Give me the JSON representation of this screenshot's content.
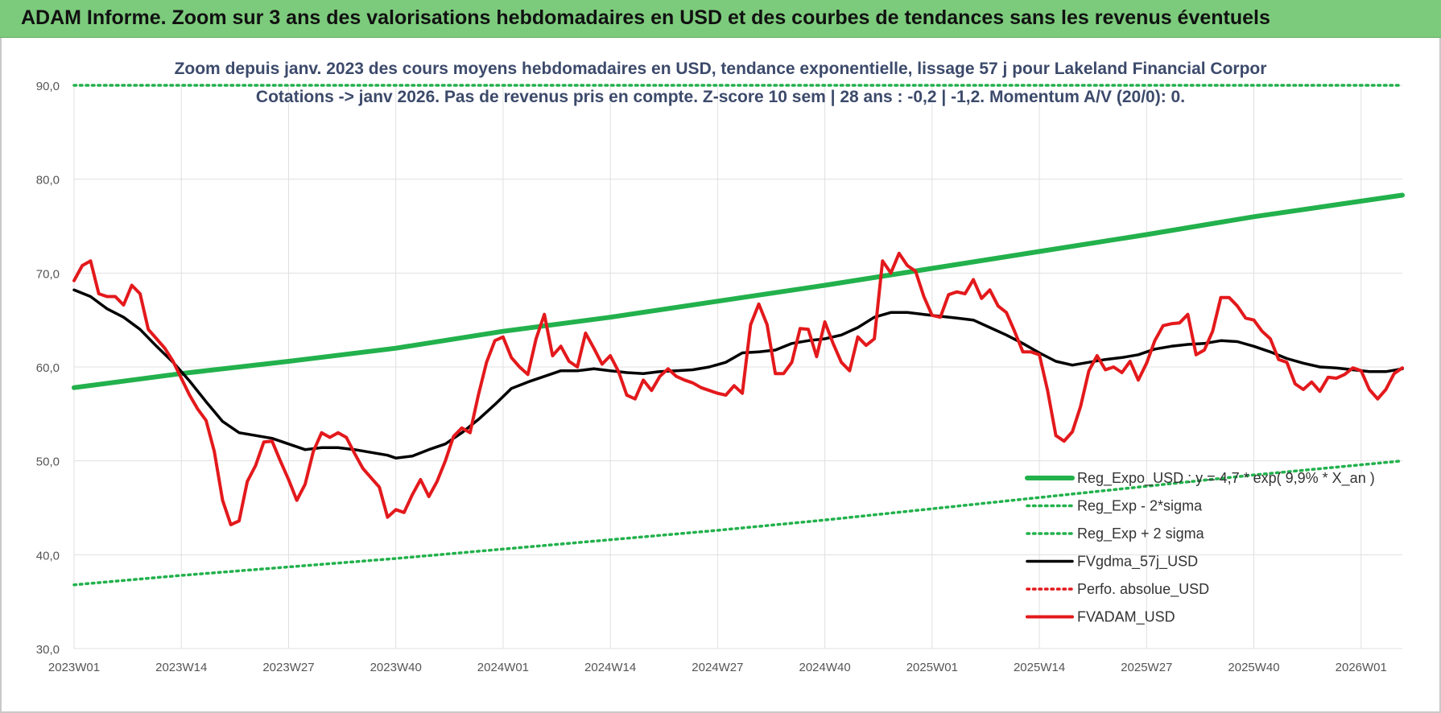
{
  "header": {
    "title": "ADAM Informe. Zoom sur 3 ans des valorisations hebdomadaires en USD et des courbes de tendances sans les revenus éventuels"
  },
  "chart_data": {
    "type": "line",
    "title_lines": [
      "Zoom depuis janv. 2023 des cours moyens hebdomadaires en USD, tendance exponentielle, lissage 57 j pour Lakeland Financial Corpor",
      "Cotations -> janv 2026. Pas de revenus pris en compte. Z-score 10 sem | 28 ans : -0,2 | -1,2. Momentum A/V (20/0): 0."
    ],
    "ylim": [
      30,
      90
    ],
    "y_ticks": [
      "30,0",
      "40,0",
      "50,0",
      "60,0",
      "70,0",
      "80,0",
      "90,0"
    ],
    "x_range": [
      0,
      161
    ],
    "x_ticks": [
      {
        "label": "2023W01",
        "week": 0
      },
      {
        "label": "2023W14",
        "week": 13
      },
      {
        "label": "2023W27",
        "week": 26
      },
      {
        "label": "2023W40",
        "week": 39
      },
      {
        "label": "2024W01",
        "week": 52
      },
      {
        "label": "2024W14",
        "week": 65
      },
      {
        "label": "2024W27",
        "week": 78
      },
      {
        "label": "2024W40",
        "week": 91
      },
      {
        "label": "2025W01",
        "week": 104
      },
      {
        "label": "2025W14",
        "week": 117
      },
      {
        "label": "2025W27",
        "week": 130
      },
      {
        "label": "2025W40",
        "week": 143
      },
      {
        "label": "2026W01",
        "week": 156
      }
    ],
    "grid": true,
    "legend_position": "bottom-right",
    "series": [
      {
        "name": "Reg_Expo_USD : y = 4,7 * exp( 9,9% * X_an )",
        "style": "solid-thick",
        "color": "#22b14c",
        "points": [
          [
            0,
            57.8
          ],
          [
            13,
            59.3
          ],
          [
            26,
            60.6
          ],
          [
            39,
            62.0
          ],
          [
            52,
            63.8
          ],
          [
            65,
            65.3
          ],
          [
            78,
            67.0
          ],
          [
            91,
            68.7
          ],
          [
            104,
            70.5
          ],
          [
            117,
            72.3
          ],
          [
            130,
            74.1
          ],
          [
            143,
            76.0
          ],
          [
            161,
            78.3
          ]
        ]
      },
      {
        "name": "Reg_Exp - 2*sigma",
        "style": "dotted",
        "color": "#22b14c",
        "points": [
          [
            0,
            36.8
          ],
          [
            13,
            37.8
          ],
          [
            26,
            38.7
          ],
          [
            39,
            39.6
          ],
          [
            52,
            40.6
          ],
          [
            65,
            41.6
          ],
          [
            78,
            42.6
          ],
          [
            91,
            43.7
          ],
          [
            104,
            44.9
          ],
          [
            117,
            46.1
          ],
          [
            130,
            47.3
          ],
          [
            143,
            48.5
          ],
          [
            161,
            50.0
          ]
        ]
      },
      {
        "name": "Reg_Exp + 2 sigma",
        "style": "dotted",
        "color": "#22b14c",
        "points": [
          [
            0,
            90.0
          ],
          [
            15,
            90.0
          ],
          [
            146,
            90.0
          ],
          [
            161,
            90.0
          ]
        ]
      },
      {
        "name": "FVgdma_57j_USD",
        "style": "solid",
        "color": "#000000",
        "points": [
          [
            0,
            68.2
          ],
          [
            2,
            67.5
          ],
          [
            4,
            66.2
          ],
          [
            6,
            65.3
          ],
          [
            8,
            64.0
          ],
          [
            10,
            62.2
          ],
          [
            12,
            60.5
          ],
          [
            14,
            58.5
          ],
          [
            16,
            56.3
          ],
          [
            18,
            54.2
          ],
          [
            20,
            53.0
          ],
          [
            22,
            52.7
          ],
          [
            24,
            52.4
          ],
          [
            26,
            51.8
          ],
          [
            28,
            51.2
          ],
          [
            30,
            51.4
          ],
          [
            32,
            51.4
          ],
          [
            34,
            51.2
          ],
          [
            36,
            50.9
          ],
          [
            38,
            50.6
          ],
          [
            39,
            50.3
          ],
          [
            41,
            50.5
          ],
          [
            43,
            51.2
          ],
          [
            45,
            51.8
          ],
          [
            47,
            53.0
          ],
          [
            49,
            54.4
          ],
          [
            51,
            56.0
          ],
          [
            53,
            57.7
          ],
          [
            55,
            58.4
          ],
          [
            57,
            59.0
          ],
          [
            59,
            59.6
          ],
          [
            61,
            59.6
          ],
          [
            63,
            59.8
          ],
          [
            65,
            59.6
          ],
          [
            67,
            59.4
          ],
          [
            69,
            59.3
          ],
          [
            71,
            59.5
          ],
          [
            73,
            59.6
          ],
          [
            75,
            59.7
          ],
          [
            77,
            60.0
          ],
          [
            79,
            60.5
          ],
          [
            81,
            61.5
          ],
          [
            83,
            61.6
          ],
          [
            85,
            61.8
          ],
          [
            87,
            62.5
          ],
          [
            89,
            62.8
          ],
          [
            91,
            63.0
          ],
          [
            93,
            63.4
          ],
          [
            95,
            64.2
          ],
          [
            97,
            65.3
          ],
          [
            99,
            65.8
          ],
          [
            101,
            65.8
          ],
          [
            103,
            65.6
          ],
          [
            105,
            65.4
          ],
          [
            107,
            65.2
          ],
          [
            109,
            65.0
          ],
          [
            111,
            64.2
          ],
          [
            113,
            63.4
          ],
          [
            115,
            62.5
          ],
          [
            117,
            61.5
          ],
          [
            119,
            60.6
          ],
          [
            121,
            60.2
          ],
          [
            123,
            60.5
          ],
          [
            125,
            60.8
          ],
          [
            127,
            61.0
          ],
          [
            129,
            61.3
          ],
          [
            131,
            61.9
          ],
          [
            133,
            62.2
          ],
          [
            135,
            62.4
          ],
          [
            137,
            62.5
          ],
          [
            139,
            62.8
          ],
          [
            141,
            62.7
          ],
          [
            143,
            62.2
          ],
          [
            145,
            61.6
          ],
          [
            147,
            60.9
          ],
          [
            149,
            60.4
          ],
          [
            151,
            60.0
          ],
          [
            153,
            59.9
          ],
          [
            155,
            59.7
          ],
          [
            157,
            59.5
          ],
          [
            159,
            59.5
          ],
          [
            161,
            59.8
          ]
        ]
      },
      {
        "name": "Perfo. absolue_USD",
        "style": "dotted",
        "color": "#e3191c",
        "points": []
      },
      {
        "name": "FVADAM_USD",
        "style": "solid-thick",
        "color": "#e3191c",
        "points": [
          [
            0,
            69.2
          ],
          [
            1,
            70.8
          ],
          [
            2,
            71.3
          ],
          [
            3,
            67.8
          ],
          [
            4,
            67.5
          ],
          [
            5,
            67.5
          ],
          [
            6,
            66.6
          ],
          [
            7,
            68.7
          ],
          [
            8,
            67.8
          ],
          [
            9,
            64.0
          ],
          [
            10,
            63.0
          ],
          [
            11,
            62.0
          ],
          [
            12,
            60.6
          ],
          [
            13,
            58.8
          ],
          [
            14,
            57.0
          ],
          [
            15,
            55.5
          ],
          [
            16,
            54.3
          ],
          [
            17,
            51.0
          ],
          [
            18,
            45.8
          ],
          [
            19,
            43.2
          ],
          [
            20,
            43.6
          ],
          [
            21,
            47.8
          ],
          [
            22,
            49.5
          ],
          [
            23,
            52.0
          ],
          [
            24,
            52.1
          ],
          [
            25,
            50.0
          ],
          [
            26,
            48.0
          ],
          [
            27,
            45.8
          ],
          [
            28,
            47.5
          ],
          [
            29,
            51.0
          ],
          [
            30,
            53.0
          ],
          [
            31,
            52.5
          ],
          [
            32,
            53.0
          ],
          [
            33,
            52.5
          ],
          [
            34,
            50.8
          ],
          [
            35,
            49.2
          ],
          [
            36,
            48.2
          ],
          [
            37,
            47.2
          ],
          [
            38,
            44.0
          ],
          [
            39,
            44.8
          ],
          [
            40,
            44.5
          ],
          [
            41,
            46.4
          ],
          [
            42,
            48.0
          ],
          [
            43,
            46.2
          ],
          [
            44,
            47.8
          ],
          [
            45,
            50.0
          ],
          [
            46,
            52.6
          ],
          [
            47,
            53.5
          ],
          [
            48,
            53.0
          ],
          [
            49,
            57.0
          ],
          [
            50,
            60.5
          ],
          [
            51,
            62.8
          ],
          [
            52,
            63.2
          ],
          [
            53,
            61.0
          ],
          [
            54,
            60.0
          ],
          [
            55,
            59.2
          ],
          [
            56,
            63.0
          ],
          [
            57,
            65.6
          ],
          [
            58,
            61.2
          ],
          [
            59,
            62.2
          ],
          [
            60,
            60.6
          ],
          [
            61,
            60.0
          ],
          [
            62,
            63.6
          ],
          [
            63,
            62.0
          ],
          [
            64,
            60.3
          ],
          [
            65,
            61.2
          ],
          [
            66,
            59.5
          ],
          [
            67,
            57.0
          ],
          [
            68,
            56.6
          ],
          [
            69,
            58.6
          ],
          [
            70,
            57.5
          ],
          [
            71,
            59.0
          ],
          [
            72,
            59.8
          ],
          [
            73,
            59.0
          ],
          [
            74,
            58.6
          ],
          [
            75,
            58.3
          ],
          [
            76,
            57.8
          ],
          [
            77,
            57.5
          ],
          [
            78,
            57.2
          ],
          [
            79,
            57.0
          ],
          [
            80,
            58.0
          ],
          [
            81,
            57.2
          ],
          [
            82,
            64.5
          ],
          [
            83,
            66.7
          ],
          [
            84,
            64.5
          ],
          [
            85,
            59.3
          ],
          [
            86,
            59.3
          ],
          [
            87,
            60.5
          ],
          [
            88,
            64.1
          ],
          [
            89,
            64.0
          ],
          [
            90,
            61.1
          ],
          [
            91,
            64.8
          ],
          [
            92,
            62.5
          ],
          [
            93,
            60.5
          ],
          [
            94,
            59.6
          ],
          [
            95,
            63.2
          ],
          [
            96,
            62.3
          ],
          [
            97,
            63.0
          ],
          [
            98,
            71.3
          ],
          [
            99,
            70.0
          ],
          [
            100,
            72.1
          ],
          [
            101,
            70.8
          ],
          [
            102,
            70.2
          ],
          [
            103,
            67.5
          ],
          [
            104,
            65.5
          ],
          [
            105,
            65.3
          ],
          [
            106,
            67.7
          ],
          [
            107,
            68.0
          ],
          [
            108,
            67.8
          ],
          [
            109,
            69.3
          ],
          [
            110,
            67.3
          ],
          [
            111,
            68.2
          ],
          [
            112,
            66.5
          ],
          [
            113,
            65.8
          ],
          [
            114,
            63.8
          ],
          [
            115,
            61.6
          ],
          [
            116,
            61.6
          ],
          [
            117,
            61.3
          ],
          [
            118,
            57.5
          ],
          [
            119,
            52.7
          ],
          [
            120,
            52.1
          ],
          [
            121,
            53.1
          ],
          [
            122,
            55.8
          ],
          [
            123,
            59.6
          ],
          [
            124,
            61.2
          ],
          [
            125,
            59.7
          ],
          [
            126,
            60.0
          ],
          [
            127,
            59.4
          ],
          [
            128,
            60.6
          ],
          [
            129,
            58.6
          ],
          [
            130,
            60.4
          ],
          [
            131,
            62.8
          ],
          [
            132,
            64.4
          ],
          [
            133,
            64.6
          ],
          [
            134,
            64.7
          ],
          [
            135,
            65.6
          ],
          [
            136,
            61.3
          ],
          [
            137,
            61.8
          ],
          [
            138,
            63.8
          ],
          [
            139,
            67.4
          ],
          [
            140,
            67.4
          ],
          [
            141,
            66.5
          ],
          [
            142,
            65.2
          ],
          [
            143,
            65.0
          ],
          [
            144,
            63.8
          ],
          [
            145,
            63.0
          ],
          [
            146,
            60.8
          ],
          [
            147,
            60.5
          ],
          [
            148,
            58.2
          ],
          [
            149,
            57.6
          ],
          [
            150,
            58.4
          ],
          [
            151,
            57.4
          ],
          [
            152,
            58.9
          ],
          [
            153,
            58.8
          ],
          [
            154,
            59.2
          ],
          [
            155,
            59.9
          ],
          [
            156,
            59.6
          ],
          [
            157,
            57.6
          ],
          [
            158,
            56.6
          ],
          [
            159,
            57.6
          ],
          [
            160,
            59.3
          ],
          [
            161,
            59.9
          ]
        ]
      }
    ]
  }
}
